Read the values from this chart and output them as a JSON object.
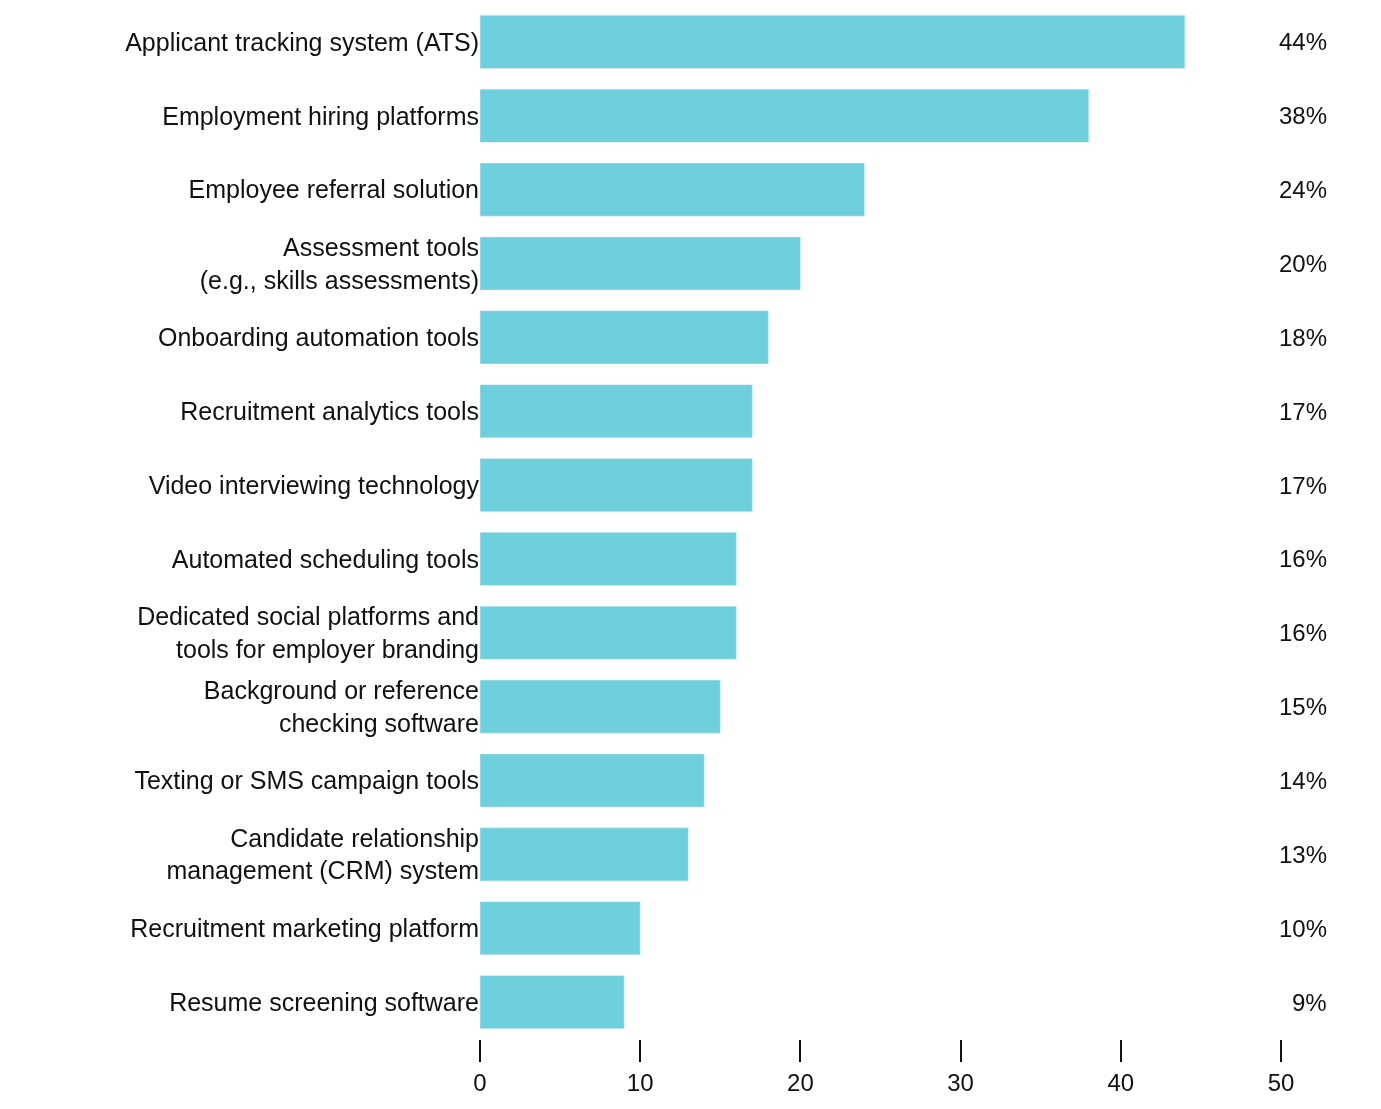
{
  "chart_data": {
    "type": "bar",
    "orientation": "horizontal",
    "categories": [
      "Applicant tracking system (ATS)",
      "Employment hiring platforms",
      "Employee referral solution",
      "Assessment tools\n(e.g., skills assessments)",
      "Onboarding automation tools",
      "Recruitment analytics tools",
      "Video interviewing technology",
      "Automated scheduling tools",
      "Dedicated social platforms and\ntools for employer branding",
      "Background or reference\nchecking software",
      "Texting or SMS campaign tools",
      "Candidate relationship\nmanagement (CRM) system",
      "Recruitment marketing platform",
      "Resume screening software"
    ],
    "values": [
      44,
      38,
      24,
      20,
      18,
      17,
      17,
      16,
      16,
      15,
      14,
      13,
      10,
      9
    ],
    "value_labels": [
      "44%",
      "38%",
      "24%",
      "20%",
      "18%",
      "17%",
      "17%",
      "16%",
      "16%",
      "15%",
      "14%",
      "13%",
      "10%",
      "9%"
    ],
    "color": "#6fcfdc",
    "xlim": [
      0,
      50
    ],
    "xticks": [
      0,
      10,
      20,
      30,
      40,
      50
    ],
    "legend": false
  }
}
